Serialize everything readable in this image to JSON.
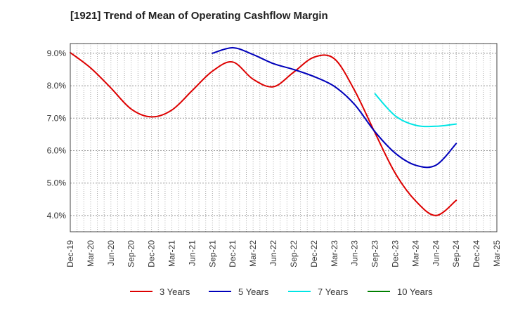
{
  "title": "[1921]  Trend of Mean of Operating Cashflow Margin",
  "chart_data": {
    "type": "line",
    "title": "[1921]  Trend of Mean of Operating Cashflow Margin",
    "xlabel": "",
    "ylabel": "",
    "ylim": [
      3.5,
      9.3
    ],
    "y_ticks": [
      4.0,
      5.0,
      6.0,
      7.0,
      8.0,
      9.0
    ],
    "y_tick_labels": [
      "4.0%",
      "5.0%",
      "6.0%",
      "7.0%",
      "8.0%",
      "9.0%"
    ],
    "x_tick_labels": [
      "Dec-19",
      "Mar-20",
      "Jun-20",
      "Sep-20",
      "Dec-20",
      "Mar-21",
      "Jun-21",
      "Sep-21",
      "Dec-21",
      "Mar-22",
      "Jun-22",
      "Sep-22",
      "Dec-22",
      "Mar-23",
      "Jun-23",
      "Sep-23",
      "Dec-23",
      "Mar-24",
      "Jun-24",
      "Sep-24",
      "Dec-24",
      "Mar-25"
    ],
    "grid": true,
    "legend_position": "bottom",
    "series": [
      {
        "name": "3 Years",
        "color": "#dd0000",
        "points": [
          [
            0,
            9.02
          ],
          [
            1,
            8.55
          ],
          [
            2,
            7.93
          ],
          [
            3,
            7.28
          ],
          [
            4,
            7.04
          ],
          [
            5,
            7.25
          ],
          [
            6,
            7.85
          ],
          [
            7,
            8.45
          ],
          [
            8,
            8.73
          ],
          [
            9,
            8.2
          ],
          [
            10,
            7.97
          ],
          [
            11,
            8.42
          ],
          [
            12,
            8.88
          ],
          [
            13,
            8.83
          ],
          [
            14,
            7.85
          ],
          [
            15,
            6.55
          ],
          [
            16,
            5.3
          ],
          [
            17,
            4.45
          ],
          [
            18,
            4.0
          ],
          [
            19,
            4.47
          ]
        ]
      },
      {
        "name": "5 Years",
        "color": "#0000bb",
        "points": [
          [
            7,
            9.0
          ],
          [
            8,
            9.17
          ],
          [
            9,
            8.96
          ],
          [
            10,
            8.68
          ],
          [
            11,
            8.5
          ],
          [
            12,
            8.28
          ],
          [
            13,
            7.98
          ],
          [
            14,
            7.42
          ],
          [
            15,
            6.58
          ],
          [
            16,
            5.92
          ],
          [
            17,
            5.55
          ],
          [
            18,
            5.55
          ],
          [
            19,
            6.22
          ]
        ]
      },
      {
        "name": "7 Years",
        "color": "#00e5e5",
        "points": [
          [
            15,
            7.75
          ],
          [
            16,
            7.07
          ],
          [
            17,
            6.78
          ],
          [
            18,
            6.75
          ],
          [
            19,
            6.82
          ]
        ]
      },
      {
        "name": "10 Years",
        "color": "#008000",
        "points": []
      }
    ]
  }
}
